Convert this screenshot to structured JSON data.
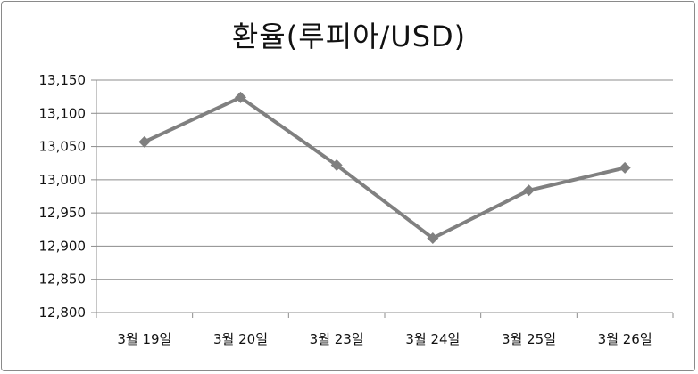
{
  "chart_data": {
    "type": "line",
    "title": "환율(루피아/USD)",
    "categories": [
      "3월 19일",
      "3월 20일",
      "3월 23일",
      "3월 24일",
      "3월 25일",
      "3월 26일"
    ],
    "series": [
      {
        "values": [
          13057,
          13124,
          13022,
          12912,
          12984,
          13018
        ]
      }
    ],
    "ylim": [
      12800,
      13150
    ],
    "yticks": [
      12800,
      12850,
      12900,
      12950,
      13000,
      13050,
      13100,
      13150
    ],
    "ytick_labels": [
      "12,800",
      "12,850",
      "12,900",
      "12,950",
      "13,000",
      "13,050",
      "13,100",
      "13,150"
    ],
    "grid": true,
    "line_color": "#808080",
    "marker": "diamond"
  }
}
